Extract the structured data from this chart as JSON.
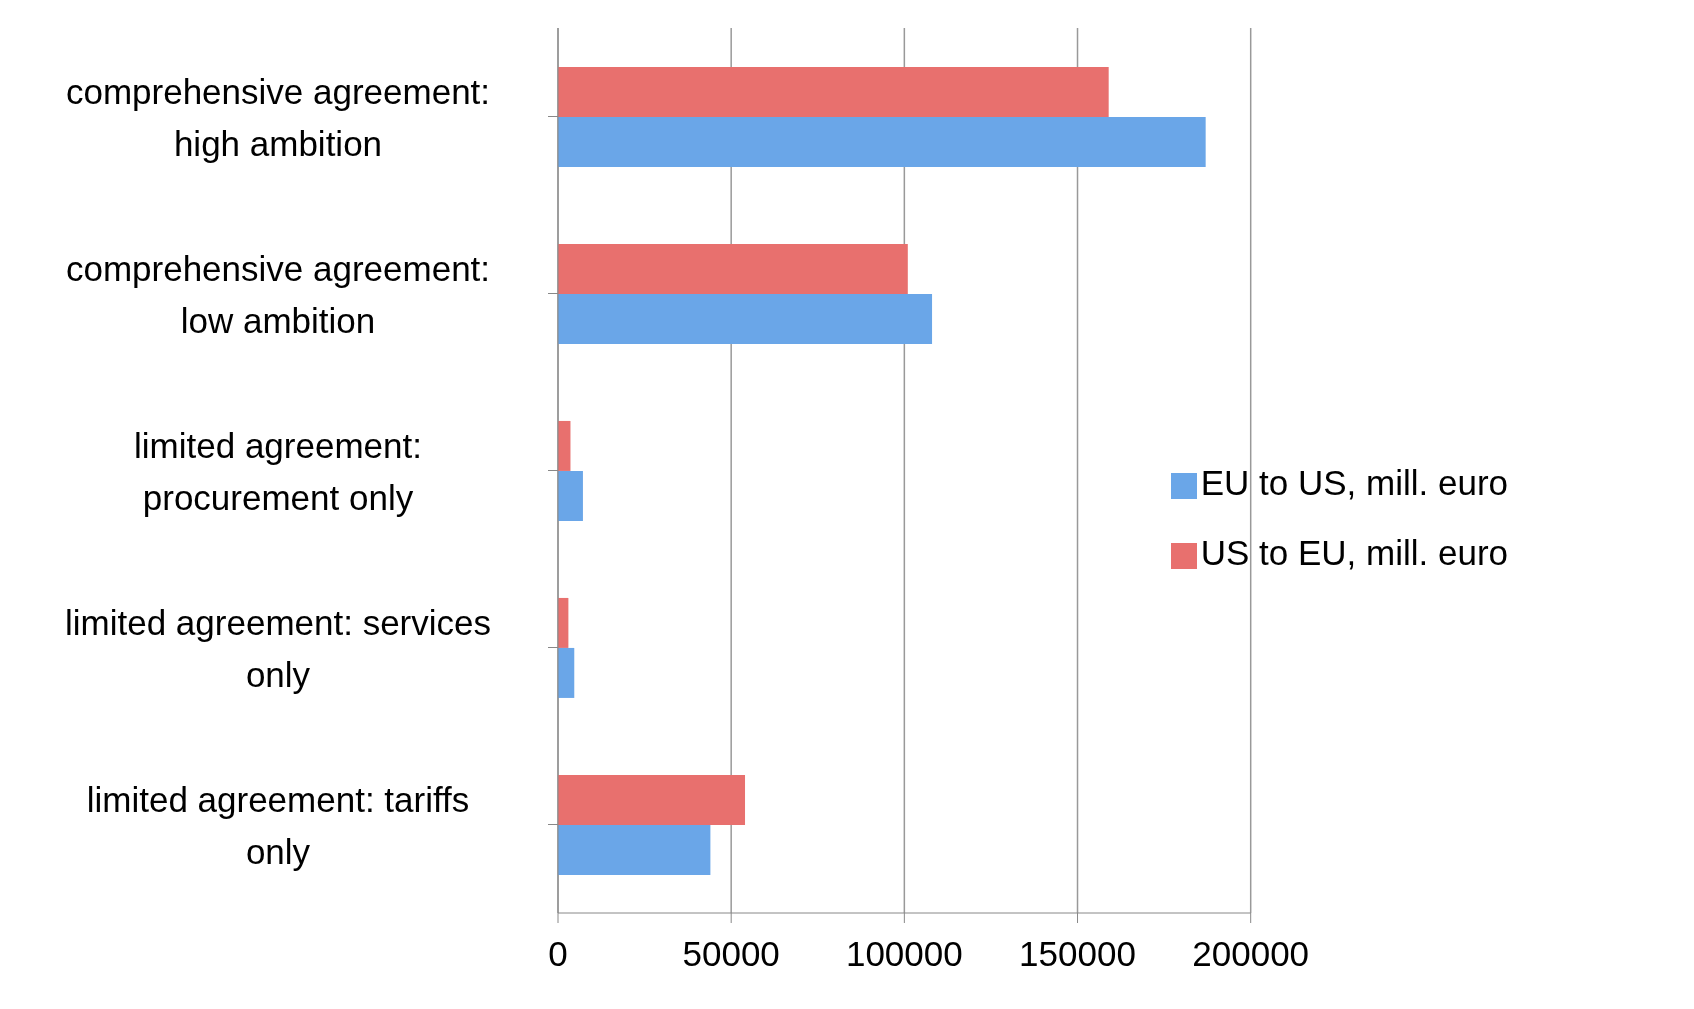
{
  "chart_data": {
    "type": "bar",
    "orientation": "horizontal",
    "categories": [
      "comprehensive agreement: high ambition",
      "comprehensive agreement: low ambition",
      "limited agreement: procurement only",
      "limited agreement: services only",
      "limited agreement: tariffs only"
    ],
    "series": [
      {
        "name": "US to EU, mill. euro",
        "color": "#e8706e",
        "values": [
          159000,
          101000,
          3600,
          3000,
          54000
        ]
      },
      {
        "name": "EU to US, mill. euro",
        "color": "#6aa6e8",
        "values": [
          187000,
          108000,
          7200,
          4700,
          44000
        ]
      }
    ],
    "xlim": [
      0,
      200000
    ],
    "xticks": [
      0,
      50000,
      100000,
      150000,
      200000
    ],
    "grid": "x",
    "legend": "right"
  }
}
